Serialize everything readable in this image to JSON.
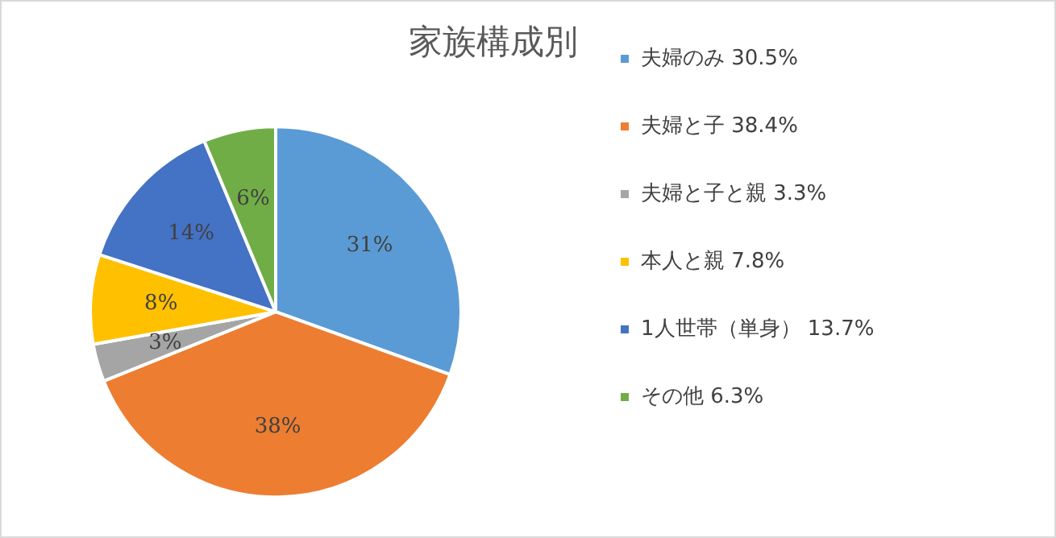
{
  "chart_data": {
    "type": "pie",
    "title": "家族構成別",
    "categories": [
      "夫婦のみ 30.5%",
      "夫婦と子 38.4%",
      "夫婦と子と親 3.3%",
      "本人と親 7.8%",
      "1人世帯（単身） 13.7%",
      "その他 6.3%"
    ],
    "values": [
      30.5,
      38.4,
      3.3,
      7.8,
      13.7,
      6.3
    ],
    "colors": [
      "#5b9bd5",
      "#ed7d31",
      "#a5a5a5",
      "#ffc000",
      "#4472c4",
      "#70ad47"
    ],
    "value_labels": [
      "31%",
      "38%",
      "3%",
      "8%",
      "14%",
      "6%"
    ],
    "legend": "right"
  }
}
